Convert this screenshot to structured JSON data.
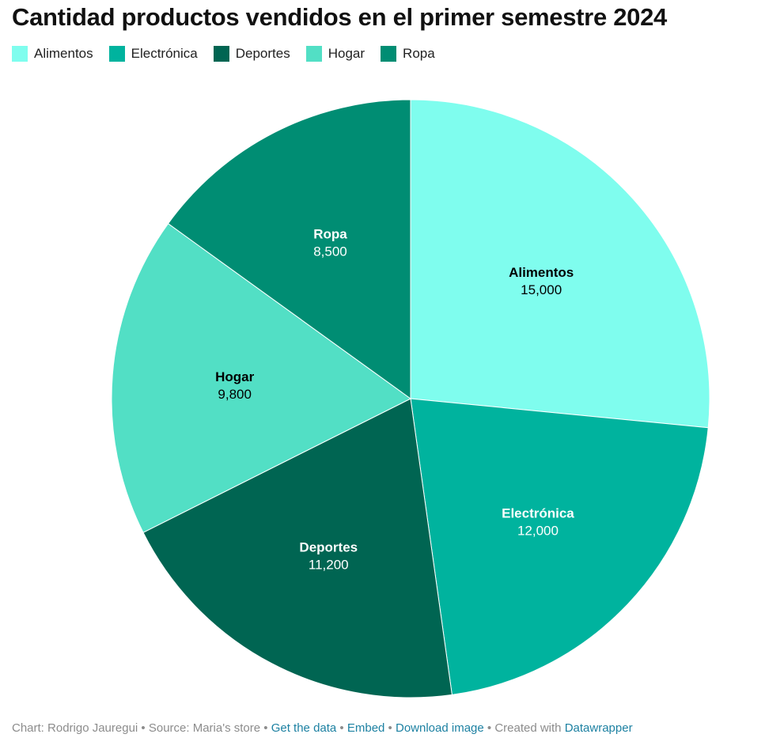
{
  "title": "Cantidad productos vendidos en el primer semestre 2024",
  "legend": [
    {
      "label": "Alimentos",
      "color": "#7ffdee"
    },
    {
      "label": "Electrónica",
      "color": "#00b39e"
    },
    {
      "label": "Deportes",
      "color": "#006552"
    },
    {
      "label": "Hogar",
      "color": "#52dfc5"
    },
    {
      "label": "Ropa",
      "color": "#008d73"
    }
  ],
  "chart_data": {
    "type": "pie",
    "title": "Cantidad productos vendidos en el primer semestre 2024",
    "categories": [
      "Alimentos",
      "Electrónica",
      "Deportes",
      "Hogar",
      "Ropa"
    ],
    "values": [
      15000,
      12000,
      11200,
      9800,
      8500
    ],
    "value_labels": [
      "15,000",
      "12,000",
      "11,200",
      "9,800",
      "8,500"
    ],
    "colors": [
      "#7ffdee",
      "#00b39e",
      "#006552",
      "#52dfc5",
      "#008d73"
    ],
    "label_colors": [
      "#000000",
      "#ffffff",
      "#ffffff",
      "#000000",
      "#ffffff"
    ],
    "legend_position": "top-left"
  },
  "footer": {
    "credit": "Chart: Rodrigo Jauregui",
    "sep1": " • ",
    "source": "Source: Maria's store",
    "sep2": " • ",
    "get_data": "Get the data",
    "sep3": " • ",
    "embed": "Embed",
    "sep4": "  • ",
    "download": "Download image",
    "sep5": " • ",
    "created": "Created with ",
    "datawrapper": "Datawrapper"
  }
}
